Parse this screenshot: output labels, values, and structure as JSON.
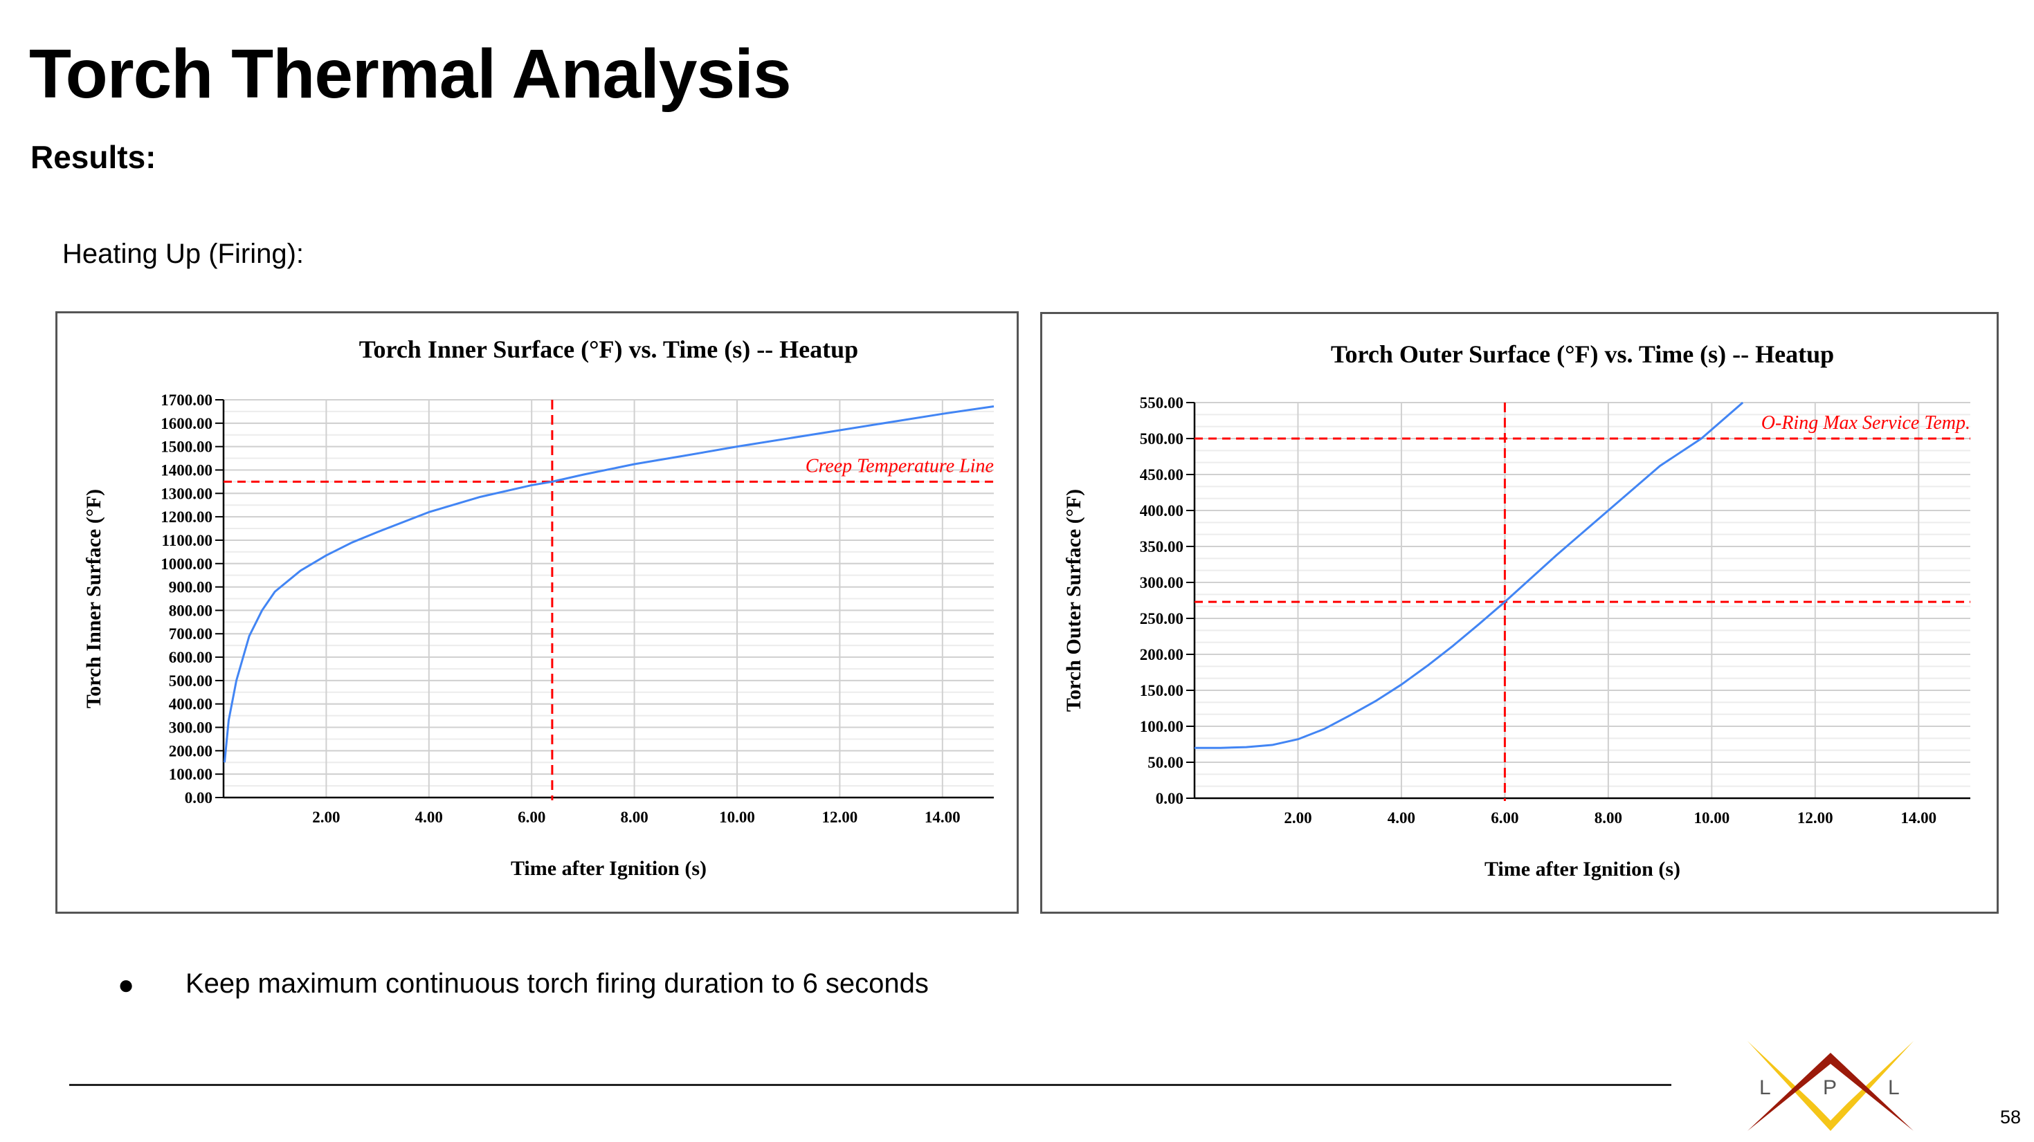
{
  "slide": {
    "title": "Torch Thermal Analysis",
    "subtitle": "Results:",
    "section": "Heating Up (Firing):",
    "bullet": "Keep maximum continuous torch firing duration to 6 seconds",
    "page_number": "58",
    "logo_text": "LPL",
    "logo_letters": [
      "L",
      "P",
      "L"
    ]
  },
  "colors": {
    "series": "#4285f4",
    "reference": "#ff0000",
    "grid": "#d9d9d9",
    "logo_red": "#9b1a0a",
    "logo_yellow": "#f5c518"
  },
  "chart_data": [
    {
      "type": "line",
      "title": "Torch Inner Surface (°F) vs. Time (s) -- Heatup",
      "xlabel": "Time after Ignition (s)",
      "ylabel": "Torch Inner Surface (°F)",
      "xlim": [
        0,
        15
      ],
      "ylim": [
        0,
        1700
      ],
      "xticks": [
        2,
        4,
        6,
        8,
        10,
        12,
        14
      ],
      "xtick_labels": [
        "2.00",
        "4.00",
        "6.00",
        "8.00",
        "10.00",
        "12.00",
        "14.00"
      ],
      "yticks": [
        0,
        100,
        200,
        300,
        400,
        500,
        600,
        700,
        800,
        900,
        1000,
        1100,
        1200,
        1300,
        1400,
        1500,
        1600,
        1700
      ],
      "ytick_labels": [
        "0.00",
        "100.00",
        "200.00",
        "300.00",
        "400.00",
        "500.00",
        "600.00",
        "700.00",
        "800.00",
        "900.00",
        "1000.00",
        "1100.00",
        "1200.00",
        "1300.00",
        "1400.00",
        "1500.00",
        "1600.00",
        "1700.00"
      ],
      "minor_y_step": 50,
      "grid": true,
      "series": [
        {
          "name": "Inner Surface",
          "x": [
            0.02,
            0.1,
            0.25,
            0.5,
            0.75,
            1,
            1.5,
            2,
            2.5,
            3,
            4,
            5,
            6,
            6.4,
            7,
            8,
            9,
            10,
            11,
            12,
            13,
            14,
            15
          ],
          "y": [
            150,
            330,
            500,
            690,
            800,
            880,
            970,
            1035,
            1090,
            1135,
            1220,
            1285,
            1335,
            1350,
            1380,
            1425,
            1462,
            1500,
            1535,
            1570,
            1605,
            1640,
            1672
          ]
        }
      ],
      "hlines": [
        {
          "y": 1350,
          "label": "Creep Temperature Line"
        }
      ],
      "vlines": [
        {
          "x": 6.4
        }
      ]
    },
    {
      "type": "line",
      "title": "Torch Outer Surface (°F) vs. Time (s) -- Heatup",
      "xlabel": "Time after Ignition (s)",
      "ylabel": "Torch Outer Surface (°F)",
      "xlim": [
        0,
        15
      ],
      "ylim": [
        0,
        550
      ],
      "xticks": [
        2,
        4,
        6,
        8,
        10,
        12,
        14
      ],
      "xtick_labels": [
        "2.00",
        "4.00",
        "6.00",
        "8.00",
        "10.00",
        "12.00",
        "14.00"
      ],
      "yticks": [
        0,
        50,
        100,
        150,
        200,
        250,
        300,
        350,
        400,
        450,
        500,
        550
      ],
      "ytick_labels": [
        "0.00",
        "50.00",
        "100.00",
        "150.00",
        "200.00",
        "250.00",
        "300.00",
        "350.00",
        "400.00",
        "450.00",
        "500.00",
        "550.00"
      ],
      "minor_y_step": 16.667,
      "grid": true,
      "series": [
        {
          "name": "Outer Surface",
          "x": [
            0,
            0.5,
            1,
            1.5,
            2,
            2.5,
            3,
            3.5,
            4,
            4.5,
            5,
            5.5,
            6,
            7,
            8,
            9,
            9.8,
            10.6
          ],
          "y": [
            70,
            70,
            71,
            74,
            82,
            96,
            115,
            135,
            158,
            184,
            212,
            242,
            273,
            338,
            400,
            462,
            500,
            550
          ]
        }
      ],
      "hlines": [
        {
          "y": 500,
          "label": "O-Ring Max Service Temp."
        },
        {
          "y": 273,
          "label": ""
        }
      ],
      "vlines": [
        {
          "x": 6.0
        }
      ]
    }
  ]
}
